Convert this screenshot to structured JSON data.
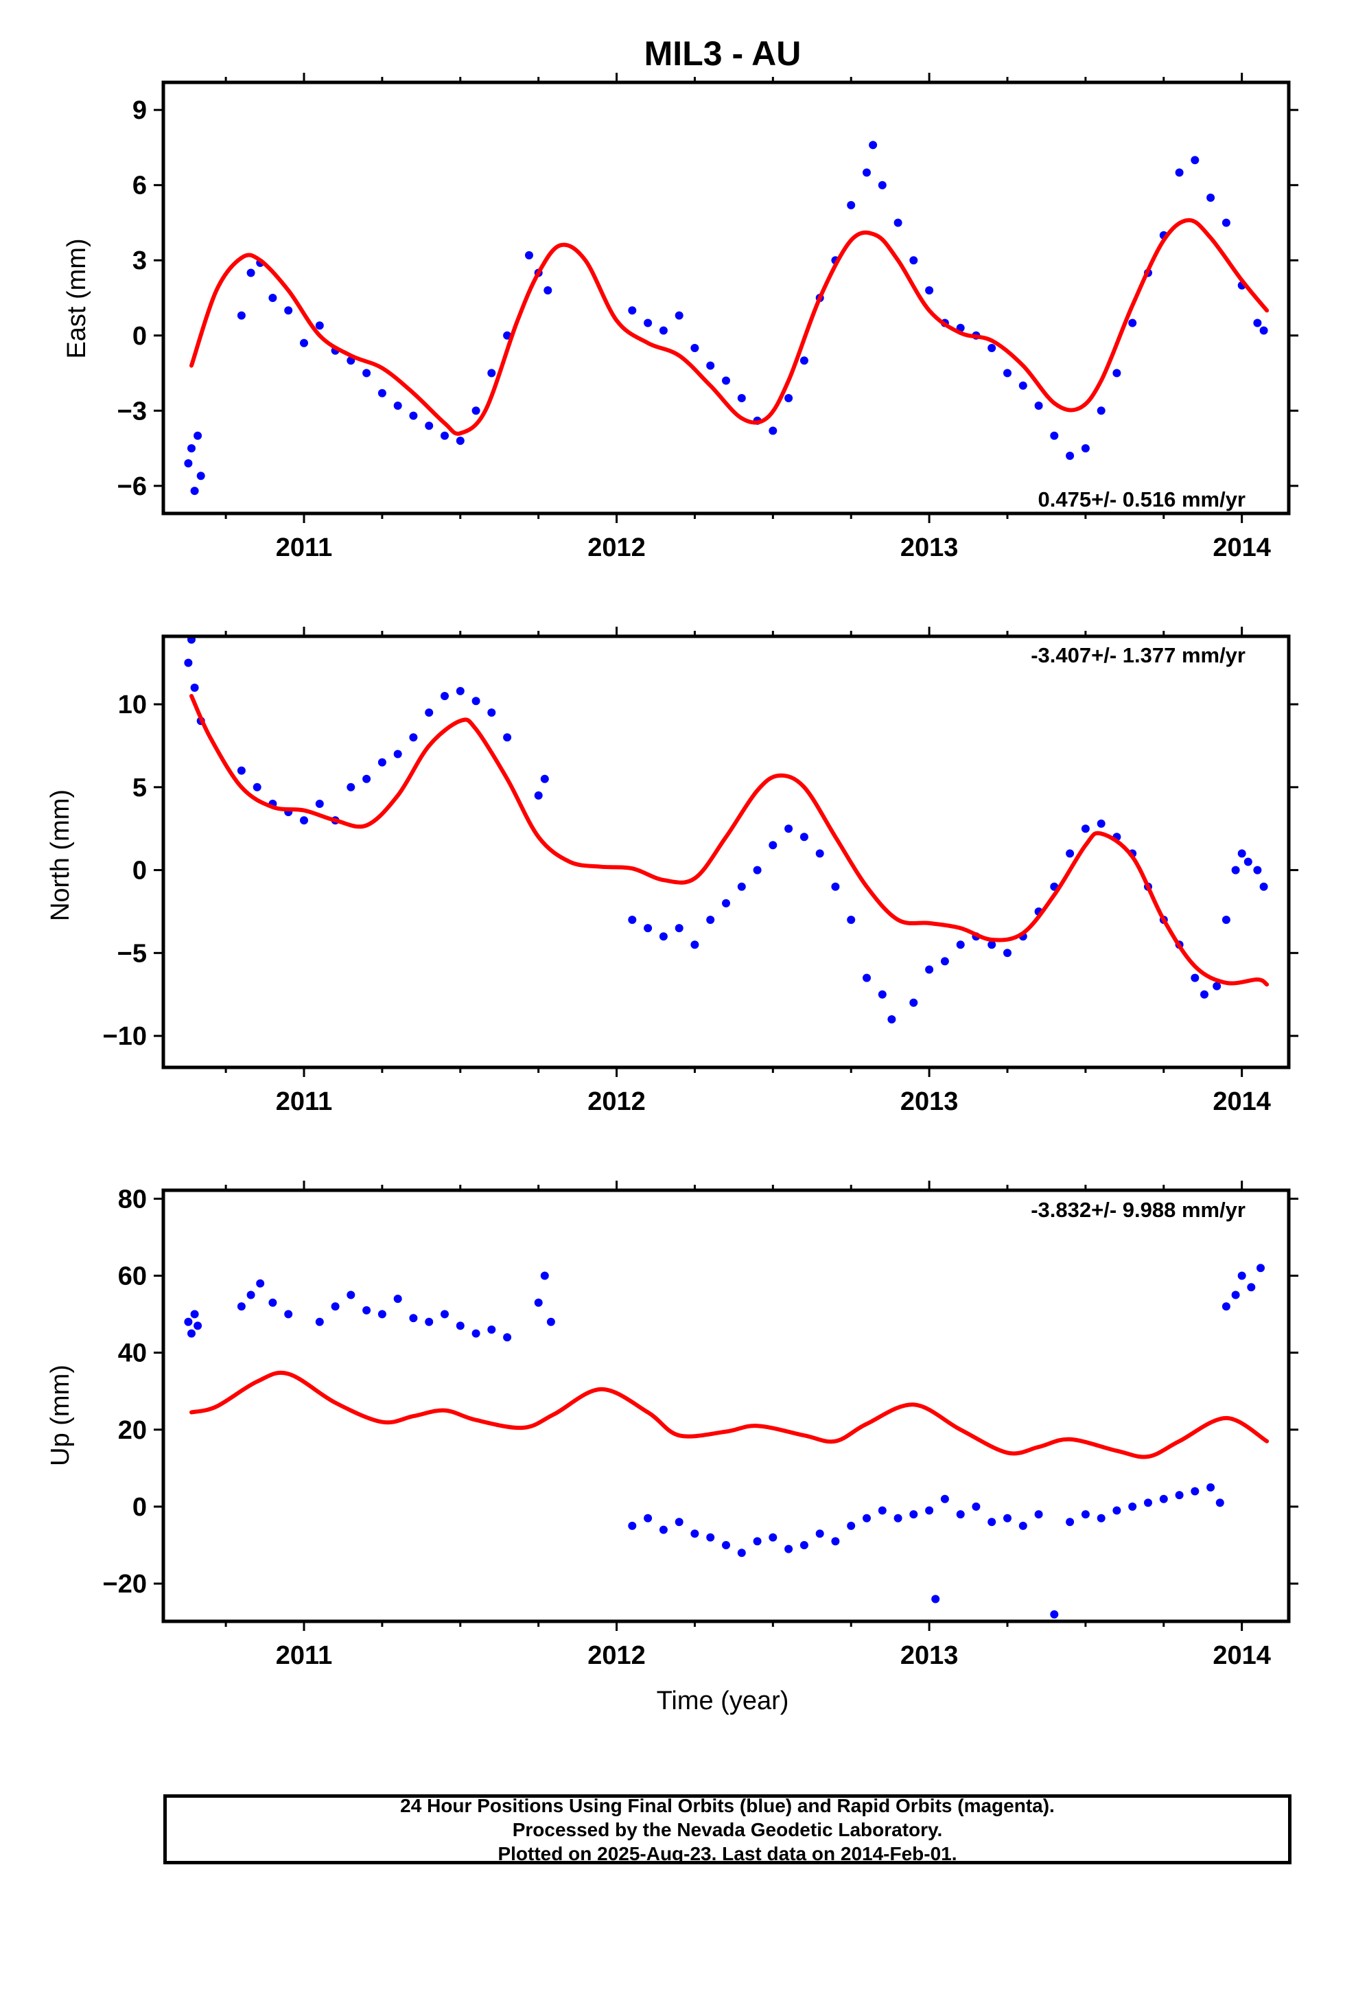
{
  "title": "MIL3 - AU",
  "xlabel": "Time (year)",
  "footer": {
    "line1": "24 Hour Positions Using Final Orbits (blue) and Rapid Orbits (magenta).",
    "line2": "Processed by the Nevada Geodetic Laboratory.",
    "line3": "Plotted on 2025-Aug-23. Last data on 2014-Feb-01."
  },
  "colors": {
    "points": "#0000ff",
    "fit": "#ff0000",
    "axes": "#000000"
  },
  "chart_data": [
    {
      "type": "scatter",
      "ylabel": "East (mm)",
      "rate_label": "0.475+/- 0.516 mm/yr",
      "xlim": [
        2010.55,
        2014.15
      ],
      "ylim": [
        -7.1,
        10.1
      ],
      "xticks": [
        2011,
        2012,
        2013,
        2014
      ],
      "xtick_labels": [
        "2011",
        "2012",
        "2013",
        "2014"
      ],
      "yticks": [
        -6,
        -3,
        0,
        3,
        6,
        9
      ],
      "ytick_labels": [
        "−6",
        "−3",
        "0",
        "3",
        "6",
        "9"
      ],
      "fit": {
        "x": [
          2010.64,
          2010.72,
          2010.8,
          2010.86,
          2010.95,
          2011.05,
          2011.15,
          2011.25,
          2011.35,
          2011.45,
          2011.5,
          2011.58,
          2011.68,
          2011.75,
          2011.82,
          2011.9,
          2012.0,
          2012.1,
          2012.2,
          2012.3,
          2012.4,
          2012.48,
          2012.55,
          2012.65,
          2012.75,
          2012.83,
          2012.9,
          2013.0,
          2013.1,
          2013.2,
          2013.3,
          2013.4,
          2013.48,
          2013.55,
          2013.65,
          2013.75,
          2013.83,
          2013.9,
          2014.0,
          2014.08
        ],
        "y": [
          -1.2,
          1.8,
          3.1,
          3.0,
          1.8,
          0.0,
          -0.8,
          -1.3,
          -2.3,
          -3.5,
          -3.9,
          -3.0,
          0.5,
          2.5,
          3.6,
          3.0,
          0.6,
          -0.3,
          -0.8,
          -2.0,
          -3.3,
          -3.3,
          -1.8,
          1.5,
          3.8,
          4.0,
          3.0,
          1.0,
          0.1,
          -0.2,
          -1.2,
          -2.7,
          -2.9,
          -1.8,
          1.2,
          3.8,
          4.6,
          3.9,
          2.2,
          1.0
        ]
      },
      "sample_points": {
        "x": [
          2010.63,
          2010.64,
          2010.65,
          2010.66,
          2010.67,
          2010.8,
          2010.83,
          2010.86,
          2010.9,
          2010.95,
          2011.0,
          2011.05,
          2011.1,
          2011.15,
          2011.2,
          2011.25,
          2011.3,
          2011.35,
          2011.4,
          2011.45,
          2011.5,
          2011.55,
          2011.6,
          2011.65,
          2011.72,
          2011.75,
          2011.78,
          2012.05,
          2012.1,
          2012.15,
          2012.2,
          2012.25,
          2012.3,
          2012.35,
          2012.4,
          2012.45,
          2012.5,
          2012.55,
          2012.6,
          2012.65,
          2012.7,
          2012.75,
          2012.8,
          2012.82,
          2012.85,
          2012.9,
          2012.95,
          2013.0,
          2013.05,
          2013.1,
          2013.15,
          2013.2,
          2013.25,
          2013.3,
          2013.35,
          2013.4,
          2013.45,
          2013.5,
          2013.55,
          2013.6,
          2013.65,
          2013.7,
          2013.75,
          2013.8,
          2013.85,
          2013.9,
          2013.95,
          2014.0,
          2014.05,
          2014.07
        ],
        "y": [
          -5.1,
          -4.5,
          -6.2,
          -4.0,
          -5.6,
          0.8,
          2.5,
          2.9,
          1.5,
          1.0,
          -0.3,
          0.4,
          -0.6,
          -1.0,
          -1.5,
          -2.3,
          -2.8,
          -3.2,
          -3.6,
          -4.0,
          -4.2,
          -3.0,
          -1.5,
          0.0,
          3.2,
          2.5,
          1.8,
          1.0,
          0.5,
          0.2,
          0.8,
          -0.5,
          -1.2,
          -1.8,
          -2.5,
          -3.4,
          -3.8,
          -2.5,
          -1.0,
          1.5,
          3.0,
          5.2,
          6.5,
          7.6,
          6.0,
          4.5,
          3.0,
          1.8,
          0.5,
          0.3,
          0.0,
          -0.5,
          -1.5,
          -2.0,
          -2.8,
          -4.0,
          -4.8,
          -4.5,
          -3.0,
          -1.5,
          0.5,
          2.5,
          4.0,
          6.5,
          7.0,
          5.5,
          4.5,
          2.0,
          0.5,
          0.2
        ]
      }
    },
    {
      "type": "scatter",
      "ylabel": "North (mm)",
      "rate_label": "-3.407+/- 1.377 mm/yr",
      "xlim": [
        2010.55,
        2014.15
      ],
      "ylim": [
        -11.9,
        14.1
      ],
      "xticks": [
        2011,
        2012,
        2013,
        2014
      ],
      "xtick_labels": [
        "2011",
        "2012",
        "2013",
        "2014"
      ],
      "yticks": [
        -10,
        -5,
        0,
        5,
        10
      ],
      "ytick_labels": [
        "−10",
        "−5",
        "0",
        "5",
        "10"
      ],
      "fit": {
        "x": [
          2010.64,
          2010.7,
          2010.8,
          2010.9,
          2011.0,
          2011.1,
          2011.2,
          2011.3,
          2011.4,
          2011.5,
          2011.55,
          2011.65,
          2011.75,
          2011.85,
          2011.95,
          2012.05,
          2012.15,
          2012.25,
          2012.35,
          2012.45,
          2012.52,
          2012.6,
          2012.7,
          2012.8,
          2012.9,
          2013.0,
          2013.1,
          2013.2,
          2013.3,
          2013.4,
          2013.5,
          2013.55,
          2013.65,
          2013.75,
          2013.85,
          2013.95,
          2014.05,
          2014.08
        ],
        "y": [
          10.5,
          8.0,
          5.0,
          3.8,
          3.6,
          3.0,
          2.7,
          4.5,
          7.5,
          9.0,
          8.5,
          5.5,
          2.0,
          0.5,
          0.2,
          0.1,
          -0.6,
          -0.5,
          2.0,
          4.8,
          5.7,
          5.0,
          2.0,
          -1.0,
          -3.0,
          -3.2,
          -3.5,
          -4.2,
          -3.8,
          -1.5,
          1.5,
          2.2,
          0.8,
          -3.0,
          -5.8,
          -6.8,
          -6.6,
          -6.9
        ]
      },
      "sample_points": {
        "x": [
          2010.63,
          2010.64,
          2010.65,
          2010.67,
          2010.8,
          2010.85,
          2010.9,
          2010.95,
          2011.0,
          2011.05,
          2011.1,
          2011.15,
          2011.2,
          2011.25,
          2011.3,
          2011.35,
          2011.4,
          2011.45,
          2011.5,
          2011.55,
          2011.6,
          2011.65,
          2011.75,
          2011.77,
          2012.05,
          2012.1,
          2012.15,
          2012.2,
          2012.25,
          2012.3,
          2012.35,
          2012.4,
          2012.45,
          2012.5,
          2012.55,
          2012.6,
          2012.65,
          2012.7,
          2012.75,
          2012.8,
          2012.85,
          2012.88,
          2012.95,
          2013.0,
          2013.05,
          2013.1,
          2013.15,
          2013.2,
          2013.25,
          2013.3,
          2013.35,
          2013.4,
          2013.45,
          2013.5,
          2013.55,
          2013.6,
          2013.65,
          2013.7,
          2013.75,
          2013.8,
          2013.85,
          2013.88,
          2013.92,
          2013.95,
          2013.98,
          2014.0,
          2014.02,
          2014.05,
          2014.07
        ],
        "y": [
          12.5,
          13.9,
          11.0,
          9.0,
          6.0,
          5.0,
          4.0,
          3.5,
          3.0,
          4.0,
          3.0,
          5.0,
          5.5,
          6.5,
          7.0,
          8.0,
          9.5,
          10.5,
          10.8,
          10.2,
          9.5,
          8.0,
          4.5,
          5.5,
          -3.0,
          -3.5,
          -4.0,
          -3.5,
          -4.5,
          -3.0,
          -2.0,
          -1.0,
          0.0,
          1.5,
          2.5,
          2.0,
          1.0,
          -1.0,
          -3.0,
          -6.5,
          -7.5,
          -9.0,
          -8.0,
          -6.0,
          -5.5,
          -4.5,
          -4.0,
          -4.5,
          -5.0,
          -4.0,
          -2.5,
          -1.0,
          1.0,
          2.5,
          2.8,
          2.0,
          1.0,
          -1.0,
          -3.0,
          -4.5,
          -6.5,
          -7.5,
          -7.0,
          -3.0,
          0.0,
          1.0,
          0.5,
          0.0,
          -1.0
        ]
      }
    },
    {
      "type": "scatter",
      "ylabel": "Up (mm)",
      "rate_label": "-3.832+/- 9.988 mm/yr",
      "xlim": [
        2010.55,
        2014.15
      ],
      "ylim": [
        -29.8,
        82.2
      ],
      "xticks": [
        2011,
        2012,
        2013,
        2014
      ],
      "xtick_labels": [
        "2011",
        "2012",
        "2013",
        "2014"
      ],
      "yticks": [
        -20,
        0,
        20,
        40,
        60,
        80
      ],
      "ytick_labels": [
        "−20",
        "0",
        "20",
        "40",
        "60",
        "80"
      ],
      "fit": {
        "x": [
          2010.64,
          2010.72,
          2010.85,
          2010.95,
          2011.1,
          2011.25,
          2011.35,
          2011.45,
          2011.55,
          2011.7,
          2011.8,
          2011.95,
          2012.1,
          2012.2,
          2012.35,
          2012.45,
          2012.6,
          2012.7,
          2012.8,
          2012.95,
          2013.1,
          2013.25,
          2013.35,
          2013.45,
          2013.6,
          2013.7,
          2013.8,
          2013.95,
          2014.08
        ],
        "y": [
          24.5,
          26.0,
          32.5,
          34.5,
          27.0,
          22.0,
          23.5,
          25.0,
          22.5,
          20.5,
          24.0,
          30.5,
          24.5,
          18.5,
          19.5,
          21.0,
          18.5,
          17.0,
          21.5,
          26.5,
          20.0,
          14.0,
          15.5,
          17.5,
          14.5,
          13.0,
          17.0,
          23.0,
          17.0
        ]
      },
      "sample_points": {
        "x": [
          2010.63,
          2010.64,
          2010.65,
          2010.66,
          2010.8,
          2010.83,
          2010.86,
          2010.9,
          2010.95,
          2011.05,
          2011.1,
          2011.15,
          2011.2,
          2011.25,
          2011.3,
          2011.35,
          2011.4,
          2011.45,
          2011.5,
          2011.55,
          2011.6,
          2011.65,
          2011.75,
          2011.77,
          2011.79,
          2012.05,
          2012.1,
          2012.15,
          2012.2,
          2012.25,
          2012.3,
          2012.35,
          2012.4,
          2012.45,
          2012.5,
          2012.55,
          2012.6,
          2012.65,
          2012.7,
          2012.75,
          2012.8,
          2012.85,
          2012.9,
          2012.95,
          2013.0,
          2013.02,
          2013.05,
          2013.1,
          2013.15,
          2013.2,
          2013.25,
          2013.3,
          2013.35,
          2013.4,
          2013.45,
          2013.5,
          2013.55,
          2013.6,
          2013.65,
          2013.7,
          2013.75,
          2013.8,
          2013.85,
          2013.9,
          2013.93,
          2013.95,
          2013.98,
          2014.0,
          2014.03,
          2014.06
        ],
        "y": [
          48.0,
          45.0,
          50.0,
          47.0,
          52.0,
          55.0,
          58.0,
          53.0,
          50.0,
          48.0,
          52.0,
          55.0,
          51.0,
          50.0,
          54.0,
          49.0,
          48.0,
          50.0,
          47.0,
          45.0,
          46.0,
          44.0,
          53.0,
          60.0,
          48.0,
          -5.0,
          -3.0,
          -6.0,
          -4.0,
          -7.0,
          -8.0,
          -10.0,
          -12.0,
          -9.0,
          -8.0,
          -11.0,
          -10.0,
          -7.0,
          -9.0,
          -5.0,
          -3.0,
          -1.0,
          -3.0,
          -2.0,
          -1.0,
          -24.0,
          2.0,
          -2.0,
          0.0,
          -4.0,
          -3.0,
          -5.0,
          -2.0,
          -28.0,
          -4.0,
          -2.0,
          -3.0,
          -1.0,
          0.0,
          1.0,
          2.0,
          3.0,
          4.0,
          5.0,
          1.0,
          52.0,
          55.0,
          60.0,
          57.0,
          62.0
        ]
      }
    }
  ]
}
